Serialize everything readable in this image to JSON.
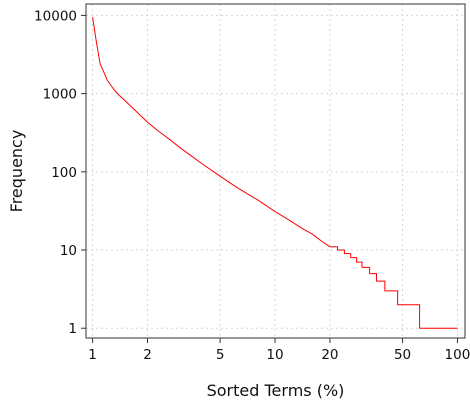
{
  "chart_data": {
    "type": "line",
    "xlabel": "Sorted Terms (%)",
    "ylabel": "Frequency",
    "xscale": "log",
    "yscale": "log",
    "xlim": [
      0.92,
      110
    ],
    "ylim": [
      0.75,
      14000
    ],
    "grid": true,
    "x_ticks": [
      {
        "value": 1,
        "label": "1"
      },
      {
        "value": 2,
        "label": "2"
      },
      {
        "value": 5,
        "label": "5"
      },
      {
        "value": 10,
        "label": "10"
      },
      {
        "value": 20,
        "label": "20"
      },
      {
        "value": 50,
        "label": "50"
      },
      {
        "value": 100,
        "label": "100"
      }
    ],
    "y_ticks": [
      {
        "value": 1,
        "label": "1"
      },
      {
        "value": 10,
        "label": "10"
      },
      {
        "value": 100,
        "label": "100"
      },
      {
        "value": 1000,
        "label": "1000"
      },
      {
        "value": 10000,
        "label": "10000"
      }
    ],
    "series": [
      {
        "color": "#ff0000",
        "step": true,
        "x": [
          1,
          1.05,
          1.1,
          1.15,
          1.2,
          1.3,
          1.4,
          1.5,
          1.7,
          2,
          2.3,
          2.7,
          3,
          3.5,
          4,
          5,
          6,
          7,
          8,
          10,
          12,
          14,
          16,
          18,
          20,
          22,
          24,
          26,
          28,
          30,
          33,
          36,
          40,
          47,
          62,
          100
        ],
        "y": [
          9500,
          4500,
          2400,
          1900,
          1500,
          1150,
          950,
          820,
          620,
          430,
          330,
          250,
          205,
          158,
          126,
          88,
          66,
          53,
          44,
          31,
          24,
          19,
          16,
          13,
          11,
          10,
          9,
          8,
          7,
          6,
          5,
          4,
          3,
          2,
          1,
          1
        ]
      }
    ]
  }
}
